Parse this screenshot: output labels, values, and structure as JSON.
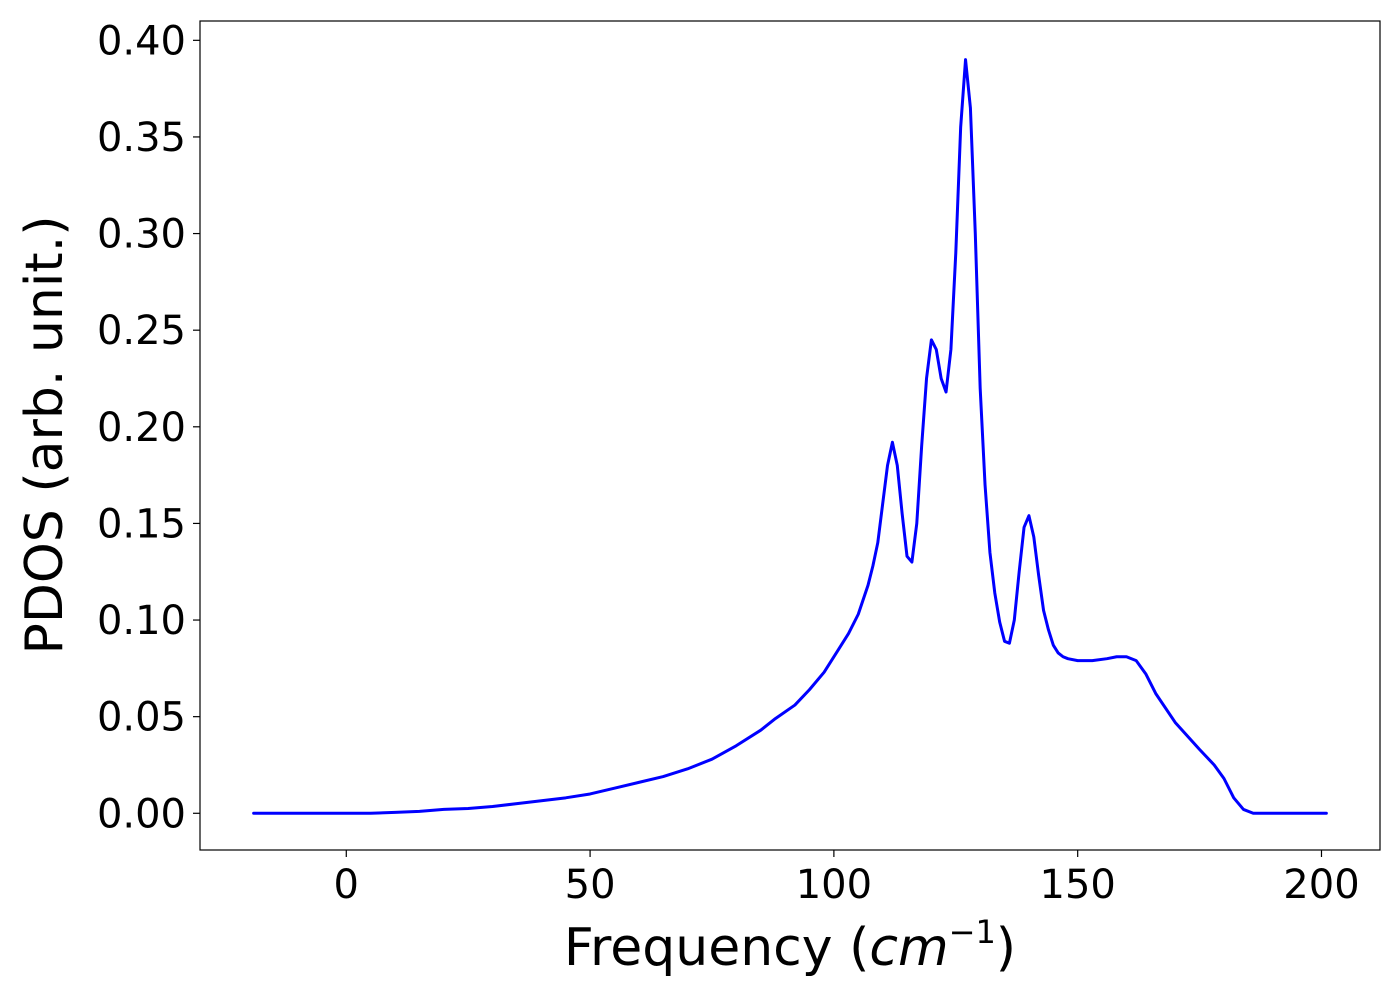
{
  "chart_data": {
    "type": "line",
    "title": "",
    "xlabel": "Frequency",
    "xlabel_unit_base": "cm",
    "xlabel_unit_exponent": "−1",
    "ylabel": "PDOS (arb. unit.)",
    "xlim": [
      -30,
      212
    ],
    "ylim": [
      -0.019,
      0.41
    ],
    "x_ticks": [
      0,
      50,
      100,
      150,
      200
    ],
    "x_tick_labels": [
      "0",
      "50",
      "100",
      "150",
      "200"
    ],
    "y_ticks": [
      0.0,
      0.05,
      0.1,
      0.15,
      0.2,
      0.25,
      0.3,
      0.35,
      0.4
    ],
    "y_tick_labels": [
      "0.00",
      "0.05",
      "0.10",
      "0.15",
      "0.20",
      "0.25",
      "0.30",
      "0.35",
      "0.40"
    ],
    "grid": false,
    "legend": "none",
    "series": [
      {
        "color": "#0000ff",
        "x": [
          -19,
          0,
          5,
          10,
          15,
          20,
          25,
          30,
          35,
          40,
          45,
          50,
          55,
          60,
          65,
          70,
          75,
          80,
          85,
          88,
          92,
          95,
          98,
          101,
          103,
          105,
          107,
          108,
          109,
          110,
          111,
          112,
          113,
          114,
          115,
          116,
          117,
          118,
          119,
          120,
          121,
          122,
          123,
          124,
          125,
          126,
          127,
          128,
          129,
          130,
          131,
          132,
          133,
          134,
          135,
          136,
          137,
          138,
          139,
          140,
          141,
          142,
          143,
          144,
          145,
          146,
          147,
          148,
          150,
          153,
          156,
          158,
          160,
          162,
          164,
          166,
          170,
          175,
          178,
          180,
          182,
          184,
          186,
          190,
          201
        ],
        "y": [
          0.0,
          0.0,
          0.0,
          0.0005,
          0.001,
          0.002,
          0.0025,
          0.0035,
          0.005,
          0.0065,
          0.008,
          0.01,
          0.013,
          0.016,
          0.019,
          0.023,
          0.028,
          0.035,
          0.043,
          0.049,
          0.056,
          0.064,
          0.073,
          0.085,
          0.093,
          0.103,
          0.118,
          0.128,
          0.14,
          0.16,
          0.18,
          0.192,
          0.18,
          0.155,
          0.133,
          0.13,
          0.15,
          0.19,
          0.225,
          0.245,
          0.24,
          0.225,
          0.218,
          0.24,
          0.29,
          0.355,
          0.39,
          0.365,
          0.3,
          0.22,
          0.17,
          0.135,
          0.114,
          0.099,
          0.089,
          0.088,
          0.1,
          0.125,
          0.148,
          0.154,
          0.143,
          0.123,
          0.105,
          0.095,
          0.087,
          0.083,
          0.081,
          0.08,
          0.079,
          0.079,
          0.08,
          0.081,
          0.081,
          0.079,
          0.072,
          0.062,
          0.047,
          0.033,
          0.025,
          0.018,
          0.008,
          0.002,
          0.0,
          0.0,
          0.0
        ]
      }
    ]
  }
}
